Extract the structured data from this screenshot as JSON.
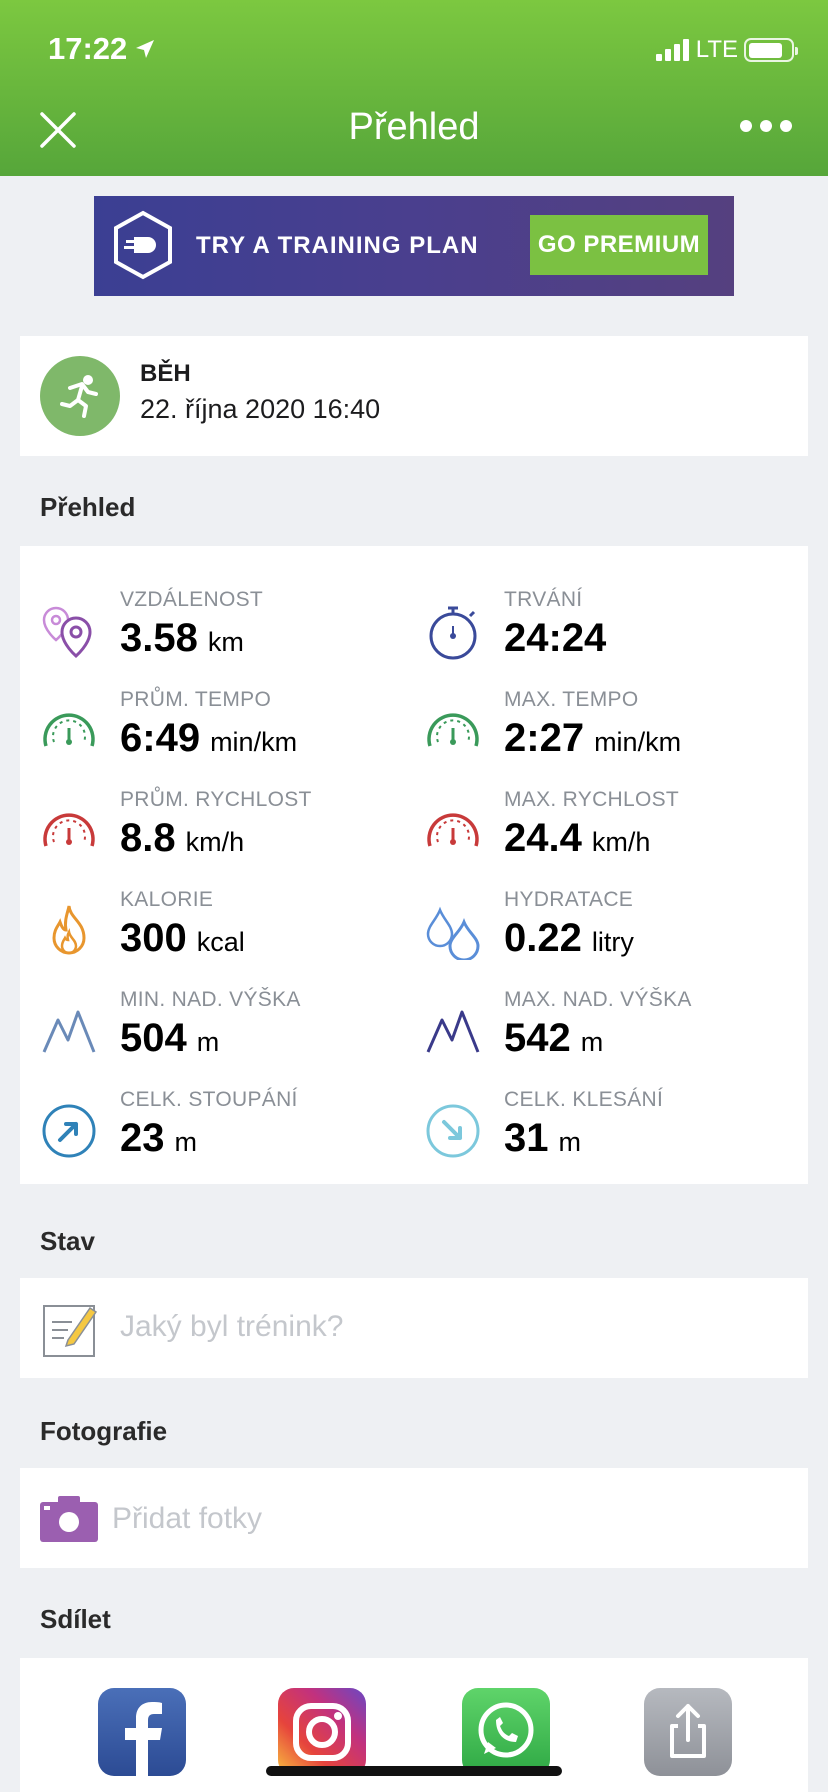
{
  "status_bar": {
    "time": "17:22",
    "network": "LTE"
  },
  "header": {
    "title": "Přehled"
  },
  "banner": {
    "text": "TRY A TRAINING PLAN",
    "button": "GO PREMIUM"
  },
  "activity": {
    "type": "BĚH",
    "date": "22. října 2020 16:40"
  },
  "sections": {
    "overview": "Přehled",
    "status": "Stav",
    "photos": "Fotografie",
    "share": "Sdílet"
  },
  "stats": [
    {
      "label": "VZDÁLENOST",
      "value": "3.58",
      "unit": "km",
      "icon": "location-pins-icon",
      "color": "#8a4fa8"
    },
    {
      "label": "TRVÁNÍ",
      "value": "24:24",
      "unit": "",
      "icon": "stopwatch-icon",
      "color": "#3a4a9a"
    },
    {
      "label": "PRŮM. TEMPO",
      "value": "6:49",
      "unit": "min/km",
      "icon": "speedometer-icon",
      "color": "#3a9a5a"
    },
    {
      "label": "MAX. TEMPO",
      "value": "2:27",
      "unit": "min/km",
      "icon": "speedometer-icon",
      "color": "#3a9a5a"
    },
    {
      "label": "PRŮM. RYCHLOST",
      "value": "8.8",
      "unit": "km/h",
      "icon": "speedometer-icon",
      "color": "#c83a3a"
    },
    {
      "label": "MAX. RYCHLOST",
      "value": "24.4",
      "unit": "km/h",
      "icon": "speedometer-icon",
      "color": "#c83a3a"
    },
    {
      "label": "KALORIE",
      "value": "300",
      "unit": "kcal",
      "icon": "flame-icon",
      "color": "#e8962e"
    },
    {
      "label": "HYDRATACE",
      "value": "0.22",
      "unit": "litry",
      "icon": "water-drops-icon",
      "color": "#5a8ed8"
    },
    {
      "label": "MIN. NAD. VÝŠKA",
      "value": "504",
      "unit": "m",
      "icon": "mountain-icon",
      "color": "#6a8ab8"
    },
    {
      "label": "MAX. NAD. VÝŠKA",
      "value": "542",
      "unit": "m",
      "icon": "mountain-icon",
      "color": "#3a3a8a"
    },
    {
      "label": "CELK. STOUPÁNÍ",
      "value": "23",
      "unit": "m",
      "icon": "arrow-up-circle-icon",
      "color": "#2f82b8"
    },
    {
      "label": "CELK. KLESÁNÍ",
      "value": "31",
      "unit": "m",
      "icon": "arrow-down-circle-icon",
      "color": "#7cc8dc"
    }
  ],
  "note": {
    "placeholder": "Jaký byl trénink?"
  },
  "photo": {
    "placeholder": "Přidat fotky"
  },
  "share_targets": [
    "facebook-icon",
    "instagram-icon",
    "whatsapp-icon",
    "share-icon"
  ]
}
